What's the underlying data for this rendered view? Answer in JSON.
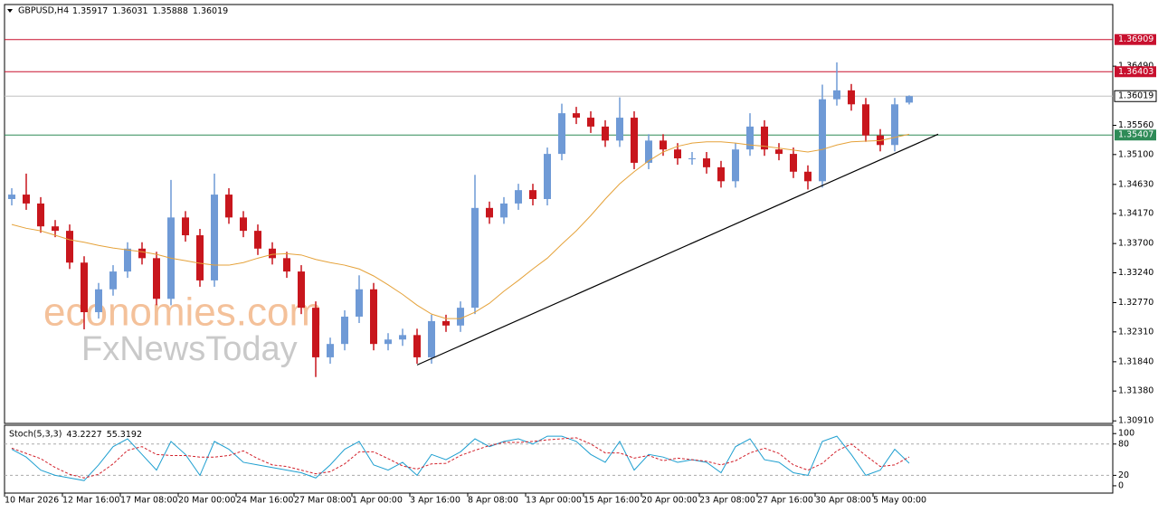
{
  "chart_data": [
    {
      "type": "candlestick",
      "title": "GBPUSD,H4",
      "categories": [
        "10 Mar 2026",
        null,
        null,
        null,
        "12 Mar 16:00",
        null,
        null,
        null,
        "17 Mar 08:00",
        null,
        null,
        null,
        "20 Mar 00:00",
        null,
        null,
        null,
        "24 Mar 16:00",
        null,
        null,
        null,
        "27 Mar 08:00",
        null,
        null,
        null,
        "1 Apr 00:00",
        null,
        null,
        null,
        "3 Apr 16:00",
        null,
        null,
        null,
        "8 Apr 08:00",
        null,
        null,
        null,
        "13 Apr 00:00",
        null,
        null,
        null,
        "15 Apr 16:00",
        null,
        null,
        null,
        "20 Apr 00:00",
        null,
        null,
        null,
        "23 Apr 08:00",
        null,
        null,
        null,
        "27 Apr 16:00",
        null,
        null,
        null,
        "30 Apr 08:00",
        null,
        null,
        null,
        "5 May 00:00",
        null,
        null
      ],
      "open": [
        1.344,
        1.3447,
        1.3433,
        1.3397,
        1.339,
        1.334,
        1.3262,
        1.3298,
        1.3326,
        1.3362,
        1.3347,
        1.3283,
        1.3411,
        1.3383,
        1.3312,
        1.3447,
        1.3411,
        1.339,
        1.3362,
        1.3347,
        1.3326,
        1.3269,
        1.3191,
        1.3212,
        1.3255,
        1.3298,
        1.3212,
        1.3219,
        1.3226,
        1.3191,
        1.3248,
        1.3241,
        1.3269,
        1.3426,
        1.3411,
        1.3433,
        1.3454,
        1.344,
        1.3511,
        1.3575,
        1.3568,
        1.3554,
        1.3532,
        1.3568,
        1.3497,
        1.3532,
        1.3518,
        1.3504,
        1.3504,
        1.349,
        1.3468,
        1.3518,
        1.3554,
        1.3518,
        1.3511,
        1.3483,
        1.3468,
        1.3597,
        1.3611,
        1.3589,
        1.354,
        1.3525,
        1.35917
      ],
      "high": [
        1.3457,
        1.348,
        1.3443,
        1.3407,
        1.34,
        1.335,
        1.3308,
        1.3336,
        1.3372,
        1.3372,
        1.3357,
        1.347,
        1.3421,
        1.3393,
        1.348,
        1.3457,
        1.3421,
        1.34,
        1.3372,
        1.3357,
        1.3336,
        1.3279,
        1.3222,
        1.3265,
        1.332,
        1.3308,
        1.3229,
        1.3236,
        1.3236,
        1.3258,
        1.3258,
        1.3279,
        1.3478,
        1.3436,
        1.3443,
        1.3464,
        1.3464,
        1.3521,
        1.359,
        1.3585,
        1.3578,
        1.3564,
        1.36,
        1.3578,
        1.3542,
        1.3542,
        1.3528,
        1.3514,
        1.3514,
        1.35,
        1.3528,
        1.3575,
        1.3564,
        1.3528,
        1.3521,
        1.3493,
        1.362,
        1.3655,
        1.3621,
        1.3599,
        1.355,
        1.3599,
        1.36031
      ],
      "low": [
        1.343,
        1.3423,
        1.3387,
        1.338,
        1.333,
        1.3235,
        1.3252,
        1.3288,
        1.3316,
        1.3337,
        1.3273,
        1.3273,
        1.3373,
        1.3302,
        1.3302,
        1.3401,
        1.338,
        1.3352,
        1.3337,
        1.3316,
        1.3259,
        1.316,
        1.3181,
        1.3202,
        1.3245,
        1.3202,
        1.3202,
        1.3209,
        1.3181,
        1.3181,
        1.3231,
        1.3231,
        1.3259,
        1.3401,
        1.3401,
        1.3423,
        1.343,
        1.343,
        1.3501,
        1.3558,
        1.3544,
        1.3522,
        1.3522,
        1.3487,
        1.3487,
        1.3508,
        1.3494,
        1.3494,
        1.348,
        1.3458,
        1.3458,
        1.3508,
        1.3508,
        1.3501,
        1.3473,
        1.3455,
        1.3458,
        1.3587,
        1.3579,
        1.353,
        1.3515,
        1.3515,
        1.35888
      ],
      "close": [
        1.3447,
        1.3433,
        1.3397,
        1.339,
        1.334,
        1.3262,
        1.3298,
        1.3326,
        1.3362,
        1.3347,
        1.3283,
        1.3411,
        1.3383,
        1.3312,
        1.3447,
        1.3411,
        1.339,
        1.3362,
        1.3347,
        1.3326,
        1.3269,
        1.3191,
        1.3212,
        1.3255,
        1.3298,
        1.3212,
        1.3219,
        1.3226,
        1.3191,
        1.3248,
        1.3241,
        1.3269,
        1.3426,
        1.3411,
        1.3433,
        1.3454,
        1.344,
        1.3511,
        1.3575,
        1.3568,
        1.3554,
        1.3532,
        1.3568,
        1.3497,
        1.3532,
        1.3518,
        1.3504,
        1.3504,
        1.349,
        1.3468,
        1.3518,
        1.3554,
        1.3518,
        1.3511,
        1.3483,
        1.3468,
        1.3597,
        1.3611,
        1.3589,
        1.354,
        1.3525,
        1.3589,
        1.36019
      ],
      "up_color": "#6f9ad6",
      "down_color": "#c8161d",
      "ma": {
        "color": "#e5a23a",
        "values": [
          1.34,
          1.3394,
          1.339,
          1.3383,
          1.3376,
          1.3372,
          1.3367,
          1.3363,
          1.336,
          1.3357,
          1.3353,
          1.3347,
          1.3343,
          1.3339,
          1.3336,
          1.3336,
          1.334,
          1.3347,
          1.3353,
          1.3354,
          1.3352,
          1.3345,
          1.334,
          1.3336,
          1.333,
          1.3319,
          1.3305,
          1.329,
          1.3273,
          1.3259,
          1.3252,
          1.3252,
          1.3262,
          1.3276,
          1.3295,
          1.3312,
          1.333,
          1.3347,
          1.3369,
          1.339,
          1.3414,
          1.344,
          1.3464,
          1.3483,
          1.35,
          1.3514,
          1.3523,
          1.3528,
          1.353,
          1.353,
          1.3528,
          1.3525,
          1.3523,
          1.352,
          1.3517,
          1.3514,
          1.3518,
          1.3525,
          1.353,
          1.3531,
          1.3532,
          1.3537,
          1.3542
        ]
      },
      "trendline": {
        "color": "#000000",
        "x": [
          28,
          64
        ],
        "values": [
          1.3179,
          1.3542
        ]
      },
      "levels": [
        {
          "value": 1.36909,
          "color": "#c8102e"
        },
        {
          "value": 1.36403,
          "color": "#c8102e"
        },
        {
          "value": 1.35407,
          "color": "#2e8b57"
        }
      ],
      "bid_color": "#c0c0c0",
      "ylim": [
        1.3087,
        1.3746
      ],
      "yticks": [
        {
          "value": 1.3649,
          "label": "1.36490"
        },
        {
          "value": 1.3556,
          "label": "1.35560"
        },
        {
          "value": 1.351,
          "label": "1.35100"
        },
        {
          "value": 1.3463,
          "label": "1.34630"
        },
        {
          "value": 1.3417,
          "label": "1.34170"
        },
        {
          "value": 1.337,
          "label": "1.33700"
        },
        {
          "value": 1.3324,
          "label": "1.33240"
        },
        {
          "value": 1.3277,
          "label": "1.32770"
        },
        {
          "value": 1.3231,
          "label": "1.32310"
        },
        {
          "value": 1.3184,
          "label": "1.31840"
        },
        {
          "value": 1.3138,
          "label": "1.31380"
        },
        {
          "value": 1.3091,
          "label": "1.30910"
        }
      ],
      "watermark": [
        "economies.com",
        "FxNewsToday"
      ]
    },
    {
      "type": "line",
      "title": "Stoch(5,3,3)",
      "series": [
        {
          "color": "#1e9fd0",
          "dash": false,
          "values": [
            70,
            55,
            30,
            20,
            15,
            10,
            40,
            75,
            90,
            60,
            30,
            85,
            60,
            20,
            85,
            70,
            45,
            40,
            35,
            30,
            25,
            15,
            40,
            70,
            85,
            40,
            30,
            45,
            20,
            60,
            50,
            65,
            90,
            75,
            85,
            90,
            80,
            95,
            95,
            85,
            60,
            45,
            85,
            30,
            60,
            55,
            45,
            50,
            45,
            25,
            75,
            90,
            50,
            45,
            25,
            20,
            85,
            95,
            60,
            20,
            30,
            70,
            43.2227
          ]
        },
        {
          "color": "#d2202a",
          "dash": true,
          "values": [
            72,
            62,
            52,
            35,
            22,
            15,
            22,
            42,
            68,
            75,
            60,
            58,
            58,
            55,
            55,
            58,
            67,
            52,
            40,
            37,
            30,
            23,
            27,
            42,
            65,
            65,
            52,
            38,
            32,
            42,
            43,
            58,
            68,
            77,
            83,
            83,
            85,
            88,
            90,
            92,
            80,
            63,
            63,
            53,
            58,
            48,
            53,
            50,
            47,
            40,
            48,
            63,
            72,
            62,
            40,
            30,
            43,
            67,
            80,
            58,
            37,
            40,
            55.3192
          ]
        }
      ],
      "ylim": [
        -14,
        116
      ],
      "yticks": [
        0,
        20,
        80,
        100
      ]
    }
  ]
}
